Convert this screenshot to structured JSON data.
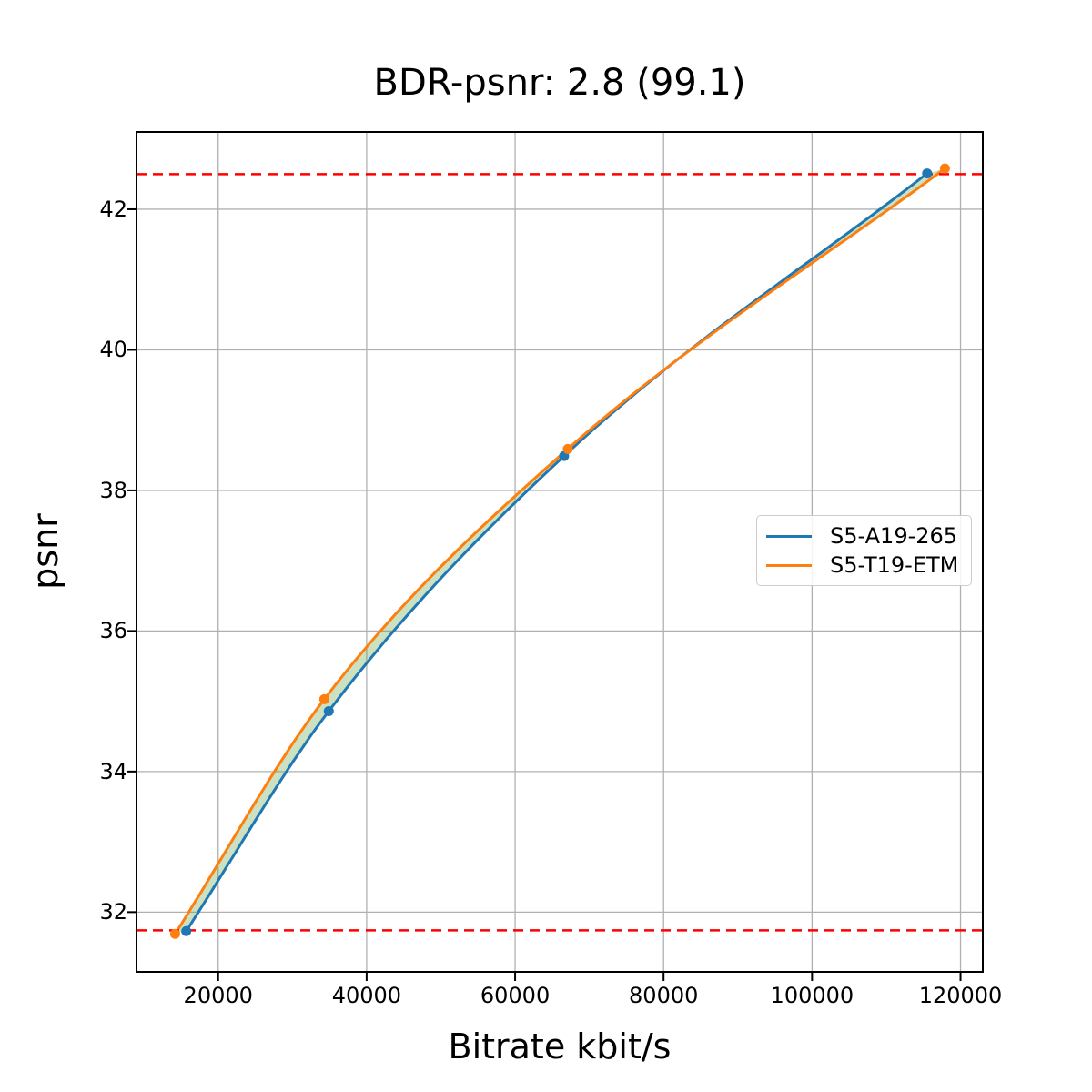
{
  "chart_data": {
    "type": "line",
    "title": "BDR-psnr: 2.8 (99.1)",
    "xlabel": "Bitrate kbit/s",
    "ylabel": "psnr",
    "xlim": [
      9000,
      123000
    ],
    "ylim": [
      31.15,
      43.1
    ],
    "x_ticks": [
      20000,
      40000,
      60000,
      80000,
      100000,
      120000
    ],
    "y_ticks": [
      32,
      34,
      36,
      38,
      40,
      42
    ],
    "grid": true,
    "grid_color": "#b0b0b0",
    "frame_color": "#000000",
    "legend_position": "center right",
    "series": [
      {
        "name": "S5-A19-265",
        "color": "#1f77b4",
        "points": [
          [
            15700,
            31.73
          ],
          [
            34900,
            34.86
          ],
          [
            66600,
            38.49
          ],
          [
            115500,
            42.51
          ]
        ]
      },
      {
        "name": "S5-T19-ETM",
        "color": "#ff7f0e",
        "points": [
          [
            14200,
            31.69
          ],
          [
            34300,
            35.03
          ],
          [
            67100,
            38.59
          ],
          [
            117900,
            42.58
          ]
        ]
      }
    ],
    "reference_lines": {
      "color": "#ff0000",
      "style": "dashed",
      "y_values": [
        31.74,
        42.5
      ]
    },
    "fill_between": {
      "color": "#69a84f",
      "opacity": 0.35
    }
  }
}
